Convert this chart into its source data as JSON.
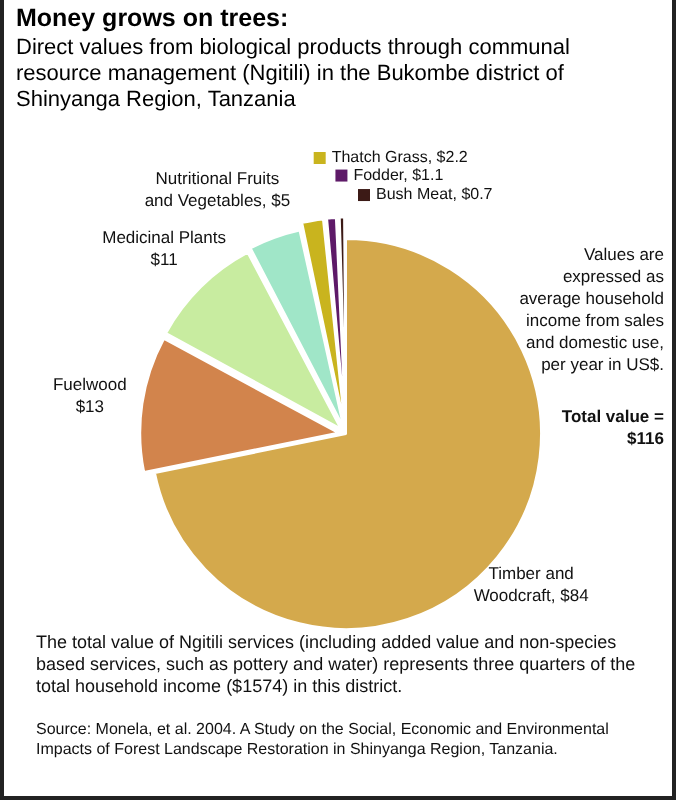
{
  "chart_data": {
    "type": "pie",
    "title": "Money grows on trees:",
    "subtitle": "Direct values from biological products through communal resource management (Ngitili) in the Bukombe district of Shinyanga Region, Tanzania",
    "categories": [
      "Timber and Woodcraft",
      "Fuelwood",
      "Medicinal Plants",
      "Nutritional Fruits and Vegetables",
      "Thatch Grass",
      "Fodder",
      "Bush Meat"
    ],
    "values": [
      84,
      13,
      11,
      5,
      2.2,
      1.1,
      0.7
    ],
    "value_labels": [
      "$84",
      "$13",
      "$11",
      "$5",
      "$2.2",
      "$1.1",
      "$0.7"
    ],
    "colors": [
      "#d4a94c",
      "#d2844c",
      "#c8eca0",
      "#a0e6c8",
      "#c9b41e",
      "#5e1a68",
      "#3c1a16"
    ],
    "legend": "top",
    "annotations": [
      "Values are expressed as average household income from sales and domestic use, per year in US$.",
      "Total value = $116",
      "The total value of Ngitili services (including added value and non-species based services, such as pottery and water) represents three quarters of the total household income ($1574) in this district.",
      "Source: Monela, et al. 2004. A Study on the Social, Economic and Environmental Impacts of Forest Landscape Restoration in Shinyanga Region, Tanzania."
    ]
  }
}
